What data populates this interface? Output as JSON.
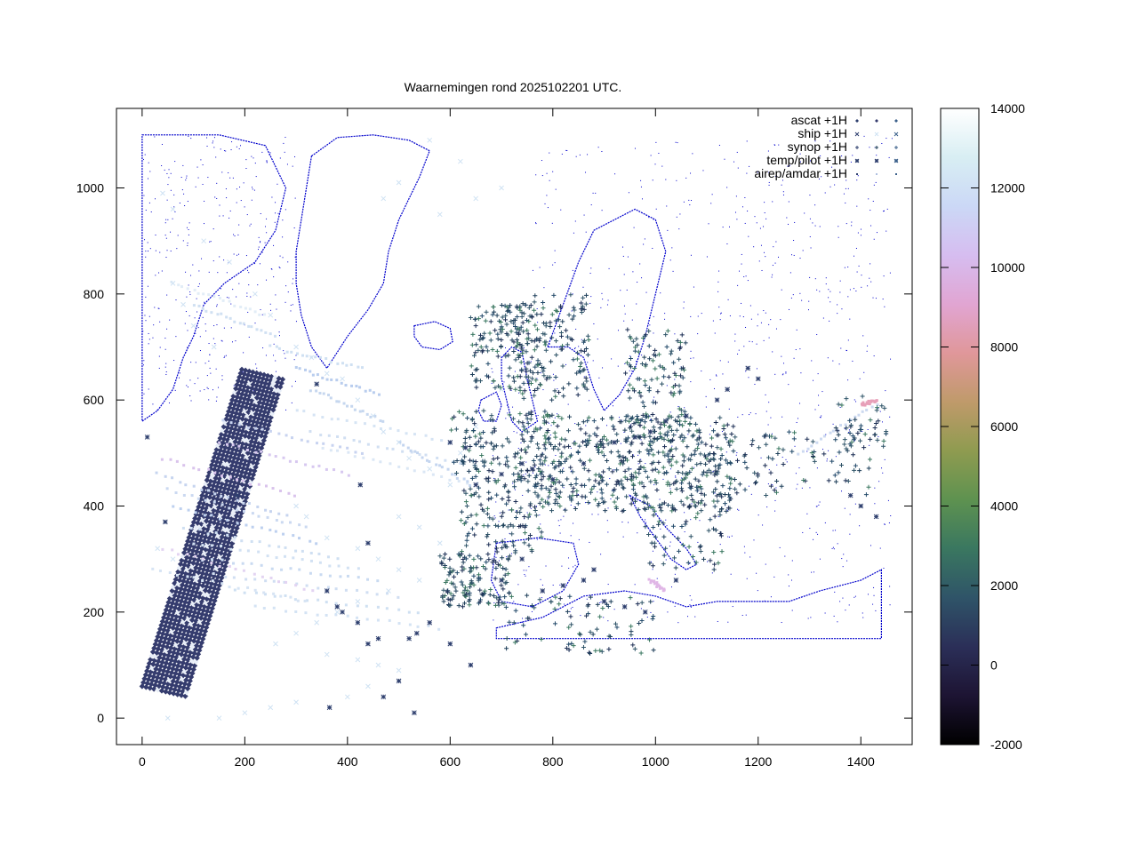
{
  "chart_data": {
    "type": "scatter",
    "title": "Waarnemingen rond 2025102201 UTC.",
    "xlim": [
      -50,
      1500
    ],
    "ylim": [
      -50,
      1150
    ],
    "xticks": [
      0,
      200,
      400,
      600,
      800,
      1000,
      1200,
      1400
    ],
    "yticks": [
      0,
      200,
      400,
      600,
      800,
      1000
    ],
    "grid": false,
    "legend_position": "top-right",
    "series": [
      {
        "name": "ascat +1H",
        "marker": "filled-diamond",
        "color": "#353c6e",
        "swath": {
          "corners": [
            [
              0,
              60
            ],
            [
              90,
              40
            ],
            [
              280,
              640
            ],
            [
              195,
              660
            ]
          ]
        }
      },
      {
        "name": "ship +1H",
        "marker": "x",
        "color": "#cfe2f3",
        "points": [
          [
            40,
            990
          ],
          [
            60,
            960
          ],
          [
            120,
            900
          ],
          [
            170,
            860
          ],
          [
            220,
            800
          ],
          [
            250,
            760
          ],
          [
            300,
            700
          ],
          [
            330,
            680
          ],
          [
            360,
            650
          ],
          [
            390,
            640
          ],
          [
            420,
            600
          ],
          [
            450,
            570
          ],
          [
            470,
            540
          ],
          [
            500,
            520
          ],
          [
            520,
            490
          ],
          [
            560,
            470
          ],
          [
            600,
            440
          ],
          [
            620,
            500
          ],
          [
            650,
            550
          ],
          [
            700,
            620
          ],
          [
            580,
            950
          ],
          [
            650,
            980
          ],
          [
            700,
            1000
          ],
          [
            620,
            1050
          ],
          [
            560,
            1090
          ],
          [
            500,
            1010
          ],
          [
            470,
            980
          ],
          [
            140,
            700
          ],
          [
            100,
            740
          ],
          [
            80,
            780
          ],
          [
            60,
            820
          ],
          [
            300,
            400
          ],
          [
            320,
            380
          ],
          [
            360,
            340
          ],
          [
            420,
            320
          ],
          [
            460,
            300
          ],
          [
            500,
            280
          ],
          [
            540,
            260
          ],
          [
            480,
            240
          ],
          [
            420,
            220
          ],
          [
            380,
            200
          ],
          [
            340,
            180
          ],
          [
            300,
            160
          ],
          [
            260,
            140
          ],
          [
            360,
            120
          ],
          [
            420,
            110
          ],
          [
            460,
            100
          ],
          [
            500,
            90
          ],
          [
            440,
            60
          ],
          [
            400,
            40
          ],
          [
            300,
            30
          ],
          [
            250,
            20
          ],
          [
            200,
            10
          ],
          [
            150,
            0
          ],
          [
            50,
            0
          ],
          [
            30,
            320
          ],
          [
            60,
            300
          ],
          [
            500,
            380
          ],
          [
            540,
            360
          ],
          [
            580,
            330
          ],
          [
            620,
            310
          ]
        ]
      },
      {
        "name": "synop +1H",
        "marker": "plus",
        "color": "#1e3f5a",
        "regions": [
          {
            "center": [
              960,
              480
            ],
            "spread": [
              200,
              90
            ],
            "count": 520
          },
          {
            "center": [
              700,
              400
            ],
            "spread": [
              80,
              90
            ],
            "count": 140
          },
          {
            "center": [
              650,
              260
            ],
            "spread": [
              70,
              50
            ],
            "count": 140
          },
          {
            "center": [
              850,
              180
            ],
            "spread": [
              150,
              60
            ],
            "count": 80
          },
          {
            "center": [
              700,
              700
            ],
            "spread": [
              60,
              80
            ],
            "count": 130
          },
          {
            "center": [
              800,
              700
            ],
            "spread": [
              70,
              100
            ],
            "count": 160
          },
          {
            "center": [
              1000,
              630
            ],
            "spread": [
              60,
              110
            ],
            "count": 140
          },
          {
            "center": [
              1280,
              480
            ],
            "spread": [
              140,
              60
            ],
            "count": 80
          },
          {
            "center": [
              1050,
              340
            ],
            "spread": [
              80,
              60
            ],
            "count": 60
          },
          {
            "center": [
              700,
              520
            ],
            "spread": [
              100,
              60
            ],
            "count": 120
          },
          {
            "center": [
              1400,
              560
            ],
            "spread": [
              50,
              50
            ],
            "count": 40
          }
        ]
      },
      {
        "name": "temp/pilot +1H",
        "marker": "star",
        "color": "#2e3f6e",
        "points": [
          [
            10,
            530
          ],
          [
            45,
            370
          ],
          [
            185,
            420
          ],
          [
            340,
            630
          ],
          [
            425,
            440
          ],
          [
            440,
            330
          ],
          [
            360,
            240
          ],
          [
            380,
            210
          ],
          [
            390,
            200
          ],
          [
            420,
            180
          ],
          [
            440,
            140
          ],
          [
            460,
            150
          ],
          [
            520,
            150
          ],
          [
            535,
            160
          ],
          [
            560,
            180
          ],
          [
            600,
            140
          ],
          [
            640,
            100
          ],
          [
            500,
            70
          ],
          [
            470,
            40
          ],
          [
            530,
            10
          ],
          [
            365,
            20
          ],
          [
            600,
            520
          ],
          [
            630,
            510
          ],
          [
            650,
            440
          ],
          [
            700,
            460
          ],
          [
            740,
            480
          ],
          [
            760,
            470
          ],
          [
            800,
            450
          ],
          [
            860,
            480
          ],
          [
            920,
            520
          ],
          [
            960,
            530
          ],
          [
            990,
            540
          ],
          [
            1020,
            560
          ],
          [
            1060,
            570
          ],
          [
            1120,
            600
          ],
          [
            1140,
            620
          ],
          [
            1180,
            660
          ],
          [
            1200,
            640
          ],
          [
            1380,
            420
          ],
          [
            1400,
            400
          ],
          [
            1430,
            380
          ],
          [
            700,
            260
          ],
          [
            740,
            300
          ],
          [
            780,
            240
          ],
          [
            820,
            250
          ],
          [
            860,
            260
          ],
          [
            880,
            280
          ],
          [
            900,
            220
          ],
          [
            940,
            210
          ],
          [
            980,
            200
          ],
          [
            1040,
            260
          ]
        ]
      },
      {
        "name": "airep/amdar +1H",
        "marker": "filled-square",
        "color": "#c8d8ee",
        "tracks": [
          {
            "from": [
              330,
              620
            ],
            "to": [
              470,
              560
            ],
            "color": "#c6d7ef"
          },
          {
            "from": [
              300,
              660
            ],
            "to": [
              460,
              610
            ],
            "color": "#b9cdee"
          },
          {
            "from": [
              250,
              700
            ],
            "to": [
              430,
              660
            ],
            "color": "#cfe0f2"
          },
          {
            "from": [
              160,
              560
            ],
            "to": [
              430,
              500
            ],
            "color": "#c8d3f0"
          },
          {
            "from": [
              150,
              520
            ],
            "to": [
              400,
              460
            ],
            "color": "#d7c8f0"
          },
          {
            "from": [
              40,
              490
            ],
            "to": [
              300,
              420
            ],
            "color": "#d9c3ec"
          },
          {
            "from": [
              30,
              460
            ],
            "to": [
              280,
              380
            ],
            "color": "#c6d4ef"
          },
          {
            "from": [
              50,
              430
            ],
            "to": [
              320,
              360
            ],
            "color": "#cbd9f1"
          },
          {
            "from": [
              60,
              400
            ],
            "to": [
              340,
              330
            ],
            "color": "#bdd0ef"
          },
          {
            "from": [
              80,
              360
            ],
            "to": [
              380,
              300
            ],
            "color": "#cfdff2"
          },
          {
            "from": [
              100,
              330
            ],
            "to": [
              420,
              280
            ],
            "color": "#d2e1f3"
          },
          {
            "from": [
              120,
              300
            ],
            "to": [
              460,
              260
            ],
            "color": "#c9daf1"
          },
          {
            "from": [
              140,
              270
            ],
            "to": [
              500,
              230
            ],
            "color": "#d0def2"
          },
          {
            "from": [
              180,
              240
            ],
            "to": [
              540,
              200
            ],
            "color": "#cfe0f2"
          },
          {
            "from": [
              220,
              210
            ],
            "to": [
              580,
              170
            ],
            "color": "#d4e3f4"
          },
          {
            "from": [
              40,
              320
            ],
            "to": [
              330,
              240
            ],
            "color": "#e3d4f2"
          },
          {
            "from": [
              20,
              280
            ],
            "to": [
              320,
              220
            ],
            "color": "#d7e4f4"
          },
          {
            "from": [
              300,
              580
            ],
            "to": [
              600,
              520
            ],
            "color": "#d6e4f4"
          },
          {
            "from": [
              330,
              540
            ],
            "to": [
              620,
              480
            ],
            "color": "#d1dff2"
          },
          {
            "from": [
              350,
              510
            ],
            "to": [
              650,
              440
            ],
            "color": "#dbe7f5"
          },
          {
            "from": [
              100,
              780
            ],
            "to": [
              260,
              720
            ],
            "color": "#d0e0f2"
          },
          {
            "from": [
              60,
              820
            ],
            "to": [
              240,
              760
            ],
            "color": "#e2edf7"
          },
          {
            "from": [
              1280,
              500
            ],
            "to": [
              1430,
              590
            ],
            "color": "#ccd9f0"
          },
          {
            "from": [
              1400,
              590
            ],
            "to": [
              1430,
              600
            ],
            "color": "#e7a0b9"
          },
          {
            "from": [
              990,
              260
            ],
            "to": [
              1020,
              240
            ],
            "color": "#e0b6e6"
          },
          {
            "from": [
              500,
              520
            ],
            "to": [
              640,
              440
            ],
            "color": "#c4d5ef"
          }
        ]
      }
    ],
    "colorbar": {
      "min": -2000,
      "max": 14000,
      "ticks": [
        -2000,
        0,
        2000,
        4000,
        6000,
        8000,
        10000,
        12000,
        14000
      ],
      "palette": "cubehelix",
      "colors": [
        "#000000",
        "#1d1433",
        "#2b2f58",
        "#2f5468",
        "#3a7760",
        "#5e9250",
        "#8f9b50",
        "#bf9a6a",
        "#e0979a",
        "#e1a5d2",
        "#d6bdf0",
        "#cbd8f6",
        "#d8eef3",
        "#ffffff"
      ]
    },
    "basemap": {
      "type": "coastlines",
      "color": "#0000cc"
    }
  }
}
